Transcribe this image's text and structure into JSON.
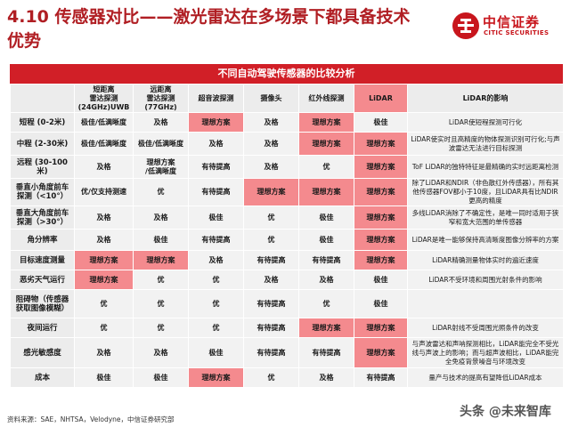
{
  "header": {
    "title": "4.10 传感器对比——激光雷达在多场景下都具备技术优势"
  },
  "logo": {
    "name": "中信证券",
    "name_en": "CITIC SECURITIES"
  },
  "table": {
    "title": "不同自动驾驶传感器的比较分析",
    "columns": [
      "",
      "短距离\n雷达探测\n(24GHz)UWB",
      "远距离\n雷达探测\n(77GHz)",
      "超音波探测",
      "摄像头",
      "红外线探测",
      "LiDAR",
      "LiDAR的影响"
    ],
    "rows": [
      {
        "label": "短程 (0-2米)",
        "cells": [
          "极佳/低满晰度",
          "及格",
          "理想方案",
          "及格",
          "理想方案",
          "极佳"
        ],
        "impact": "LiDAR使短程探测可行化",
        "height": 22
      },
      {
        "label": "中程 (2-30米)",
        "cells": [
          "极佳/低满晰度",
          "极佳/低满晰度",
          "及格",
          "及格",
          "理想方案",
          "理想方案"
        ],
        "impact": "LiDAR使实时且高精度的物体探测识别可行化;与声波雷达无法进行目标探测",
        "height": 26
      },
      {
        "label": "远程 (30-100米)",
        "cells": [
          "及格",
          "理想方案\n/低满晰度",
          "有待提高",
          "及格",
          "优",
          "理想方案"
        ],
        "impact": "ToF LiDAR的独特特征是最精确的实时远距离检测",
        "height": 26
      },
      {
        "label": "垂直小角度前车探测（<10°）",
        "cells": [
          "优/仅支持测速",
          "优",
          "有待提高",
          "理想方案",
          "理想方案",
          "理想方案"
        ],
        "impact": "除了LiDAR和NDIR（非色散红外传感器），所有其他传感器FOV都小于10度，且LiDAR具有比NDIR更高的精度",
        "height": 30
      },
      {
        "label": "垂直大角度前车探测（>30°）",
        "cells": [
          "及格",
          "及格",
          "极佳",
          "优",
          "极佳",
          "理想方案"
        ],
        "impact": "多线LiDAR消除了不确定性，是唯一同时适用于狭窄和宽大范围的单传感器",
        "height": 26
      },
      {
        "label": "角分辨率",
        "cells": [
          "及格",
          "极佳",
          "有待提高",
          "优",
          "极佳",
          "理想方案"
        ],
        "impact": "LiDAR是唯一能够保持高清晰度图像分辨率的方案",
        "height": 24
      },
      {
        "label": "目标速度测量",
        "cells": [
          "理想方案",
          "理想方案",
          "及格",
          "有待提高",
          "有待提高",
          "理想方案"
        ],
        "impact": "LiDAR精确测量物体实时的遍近速度",
        "height": 22
      },
      {
        "label": "恶劣天气运行",
        "cells": [
          "理想方案",
          "优",
          "优",
          "及格",
          "及格",
          "极佳"
        ],
        "impact": "LiDAR不受环境和周围光射条件的影响",
        "height": 22
      },
      {
        "label": "阻碍物（传感器获取图像模糊）",
        "cells": [
          "优",
          "优",
          "优",
          "有待提高",
          "优",
          "极佳"
        ],
        "impact": "",
        "height": 32
      },
      {
        "label": "夜间运行",
        "cells": [
          "优",
          "优",
          "优",
          "有待提高",
          "理想方案",
          "理想方案"
        ],
        "impact": "LiDAR射线不受周围光照条件的改变",
        "height": 22
      },
      {
        "label": "感光敏感度",
        "cells": [
          "及格",
          "及格",
          "极佳",
          "有待提高",
          "有待提高",
          "理想方案"
        ],
        "impact": "与声波雷达和声呐探测相比，LiDAR能完全不受光线与声波上的影响；而与超声波相比，LiDAR能完全免疫背景噪音与环境改变",
        "height": 34
      },
      {
        "label": "成本",
        "cells": [
          "极佳",
          "极佳",
          "理想方案",
          "优",
          "及格",
          "有待提高"
        ],
        "impact": "量产与技术的提高有望降低LiDAR成本",
        "height": 22
      }
    ],
    "highlight_value": "理想方案"
  },
  "footer": {
    "source": "资料来源：SAE，NHTSA，Velodyne，中信证券研究部",
    "watermark": "头条 @未来智库"
  },
  "colors": {
    "accent": "#d11f27",
    "highlight": "#f48a8e",
    "cell_bg": "#f2f2f2",
    "title_red": "#b01e23"
  }
}
